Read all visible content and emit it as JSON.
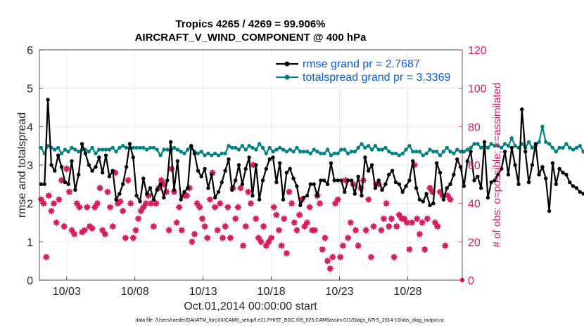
{
  "chart_data": {
    "type": "line",
    "title_line1": "Tropics 4265 / 4269 = 99.906%",
    "title_line2": "AIRCRAFT_V_WIND_COMPONENT @ 400 hPa",
    "ylabel_left": "rmse and totalspread",
    "ylabel_right": "# of obs: o=possible; ×=assimilated",
    "xlabel": "Oct.01,2014 00:00:00 start",
    "footnote": "data file: /Users/raeder/DAI/ATM_forcXX/CAM6_setup/f.e21.FHIST_BGC.f09_025.CAM6assim.011/Diags_NTrS_2014-10/obs_diag_output.nc",
    "xlim": [
      1.0,
      32.0
    ],
    "ylim_left": [
      0,
      6
    ],
    "ylim_right": [
      0,
      120
    ],
    "yticks_left": [
      0,
      1,
      2,
      3,
      4,
      5,
      6
    ],
    "yticks_right": [
      0,
      20,
      40,
      60,
      80,
      100,
      120
    ],
    "xticks": [
      {
        "x": 3,
        "label": "10/03"
      },
      {
        "x": 8,
        "label": "10/08"
      },
      {
        "x": 13,
        "label": "10/13"
      },
      {
        "x": 18,
        "label": "10/18"
      },
      {
        "x": 23,
        "label": "10/23"
      },
      {
        "x": 28,
        "label": "10/28"
      }
    ],
    "legend": [
      {
        "name": "rmse grand pr = 2.7687",
        "color": "#000000"
      },
      {
        "name": "totalspread grand pr = 3.3369",
        "color": "#008080"
      }
    ],
    "legend_position": "top-right",
    "x_start": 1.125,
    "x_step": 0.25,
    "series": [
      {
        "name": "rmse",
        "color": "#000000",
        "values": [
          2.5,
          2.5,
          4.7,
          3.0,
          2.85,
          3.25,
          2.95,
          2.55,
          2.5,
          3.1,
          2.35,
          2.75,
          3.55,
          3.3,
          3.0,
          2.85,
          2.95,
          3.2,
          2.8,
          3.25,
          2.7,
          2.85,
          2.1,
          2.25,
          2.5,
          2.95,
          3.55,
          3.2,
          2.2,
          2.05,
          2.65,
          2.25,
          2.4,
          2.1,
          2.35,
          2.5,
          2.15,
          2.6,
          3.6,
          2.35,
          3.1,
          2.1,
          2.3,
          2.4,
          3.5,
          3.3,
          2.85,
          2.7,
          2.9,
          2.4,
          2.75,
          2.15,
          2.3,
          2.55,
          2.85,
          3.15,
          2.35,
          2.6,
          3.0,
          2.5,
          2.9,
          3.2,
          2.2,
          3.0,
          2.1,
          2.6,
          2.9,
          3.15,
          3.2,
          2.55,
          3.05,
          2.1,
          2.8,
          2.9,
          2.65,
          2.45,
          1.95,
          2.15,
          2.2,
          2.5,
          2.5,
          2.2,
          2.6,
          2.6,
          2.5,
          3.05,
          2.6,
          2.6,
          2.6,
          2.3,
          2.6,
          2.6,
          2.25,
          2.7,
          2.2,
          3.2,
          2.85,
          3.0,
          2.4,
          2.6,
          2.35,
          2.5,
          2.75,
          2.85,
          2.55,
          2.5,
          2.3,
          2.45,
          2.6,
          3.1,
          2.4,
          2.1,
          2.05,
          2.25,
          1.95,
          2.0,
          3.05,
          2.8,
          2.1,
          2.4,
          2.5,
          2.75,
          3.15,
          2.95,
          2.45,
          3.1,
          3.35,
          2.6,
          2.7,
          2.4,
          3.6,
          2.15,
          2.55,
          2.6,
          2.75,
          2.9,
          3.35,
          2.75,
          3.45,
          3.0,
          2.5,
          4.45,
          3.35,
          2.55,
          3.0,
          3.55,
          2.75,
          2.95,
          2.65,
          1.8,
          3.05,
          2.5,
          2.9,
          2.8,
          2.75,
          2.55,
          2.45,
          2.4,
          2.3,
          2.25
        ],
        "x_start": 1.125,
        "x_step": 0.25
      },
      {
        "name": "totalspread",
        "color": "#008080",
        "values": [
          3.45,
          3.3,
          3.5,
          3.45,
          3.4,
          3.45,
          3.3,
          3.4,
          3.35,
          3.45,
          3.4,
          3.35,
          3.4,
          3.4,
          3.35,
          3.45,
          3.3,
          3.4,
          3.4,
          3.4,
          3.4,
          3.45,
          3.35,
          3.45,
          3.5,
          3.45,
          3.45,
          3.45,
          3.45,
          3.45,
          3.45,
          3.4,
          3.45,
          3.45,
          3.4,
          3.25,
          3.4,
          3.4,
          3.35,
          3.45,
          3.4,
          3.35,
          3.3,
          3.4,
          3.5,
          3.35,
          3.3,
          3.35,
          3.25,
          3.3,
          3.25,
          3.3,
          3.25,
          3.3,
          3.3,
          3.5,
          3.45,
          3.45,
          3.4,
          3.5,
          3.4,
          3.5,
          3.45,
          3.4,
          3.55,
          3.45,
          3.3,
          3.45,
          3.35,
          3.4,
          3.45,
          3.4,
          3.35,
          3.4,
          3.35,
          3.45,
          3.35,
          3.35,
          3.35,
          3.3,
          3.4,
          3.35,
          3.3,
          3.3,
          3.4,
          3.25,
          3.3,
          3.3,
          3.4,
          3.4,
          3.3,
          3.35,
          3.35,
          3.45,
          3.55,
          3.45,
          3.5,
          3.4,
          3.5,
          3.4,
          3.4,
          3.45,
          3.35,
          3.3,
          3.3,
          3.25,
          3.3,
          3.4,
          3.5,
          3.35,
          3.35,
          3.35,
          3.25,
          3.3,
          3.4,
          3.35,
          3.35,
          3.25,
          3.35,
          3.45,
          3.35,
          3.3,
          3.4,
          3.35,
          3.35,
          3.4,
          3.45,
          3.55,
          3.55,
          3.45,
          3.5,
          3.45,
          3.55,
          3.5,
          3.5,
          3.45,
          3.55,
          3.5,
          3.7,
          3.5,
          3.45,
          3.55,
          3.45,
          3.6,
          3.45,
          3.5,
          3.6,
          4.0,
          3.6,
          3.55,
          3.45,
          3.35,
          3.45,
          3.45,
          3.55,
          3.45,
          3.4,
          3.45,
          3.5,
          3.35
        ],
        "x_start": 1.125,
        "x_step": 0.25
      }
    ],
    "obs_possible": {
      "color": "#d81b60",
      "values": [
        42,
        40,
        12,
        44,
        36,
        40,
        30,
        42,
        52,
        28,
        58,
        46,
        26,
        24,
        40,
        38,
        25,
        26,
        38,
        28,
        27,
        38,
        40,
        48,
        26,
        24,
        46,
        38,
        28,
        56,
        40,
        41,
        36,
        22,
        52,
        40,
        22,
        26,
        32,
        36,
        38,
        40,
        44,
        40,
        28,
        40,
        48,
        52,
        50,
        46,
        26,
        58,
        46,
        30,
        38,
        26,
        44,
        44,
        48,
        20,
        24,
        40,
        38,
        32,
        28,
        22,
        42,
        56,
        38,
        26,
        40,
        22,
        28,
        38,
        22,
        48,
        32,
        38,
        48,
        18,
        28,
        46,
        40,
        60,
        32,
        22,
        20,
        28,
        18,
        20,
        22,
        38,
        34,
        26,
        18,
        32,
        14,
        46,
        40,
        30,
        26,
        34,
        42,
        28,
        30,
        38,
        26,
        26,
        44,
        40,
        16,
        22,
        10,
        6,
        12,
        40,
        42,
        12,
        18,
        52,
        22,
        30,
        50,
        26,
        18,
        48,
        52,
        26,
        42,
        12,
        28,
        50,
        50,
        26,
        32,
        40,
        28,
        32,
        12,
        28,
        34,
        32,
        32,
        30,
        16,
        30,
        60,
        32,
        24,
        30,
        16,
        32,
        48,
        46,
        30,
        28,
        46,
        44,
        18,
        44,
        42
      ],
      "x_start": 1.125,
      "x_step": 0.1875
    },
    "obs_assimilated_count_last": 0
  }
}
